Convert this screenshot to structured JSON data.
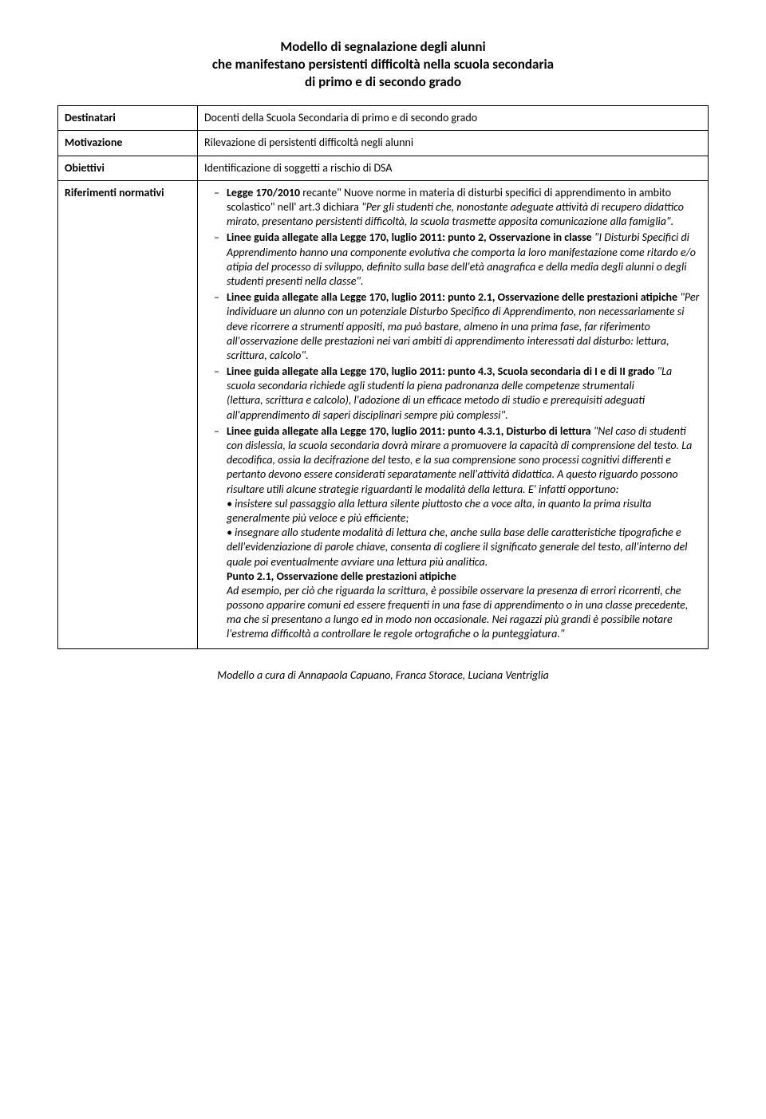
{
  "title": {
    "line1": "Modello di segnalazione degli alunni",
    "line2": "che  manifestano  persistenti difficoltà nella scuola secondaria",
    "line3": "di primo e di secondo grado"
  },
  "rows": {
    "destinatari": {
      "label": "Destinatari",
      "value": "Docenti della  Scuola Secondaria di primo e di secondo grado"
    },
    "motivazione": {
      "label": "Motivazione",
      "value": "Rilevazione di persistenti difficoltà negli alunni"
    },
    "obiettivi": {
      "label": "Obiettivi",
      "value": "Identificazione di soggetti a rischio di DSA"
    },
    "riferimenti": {
      "label": "Riferimenti normativi"
    }
  },
  "ref": {
    "item1": {
      "lead_b": "Legge 170/2010 ",
      "plain1": "recante\" Nuove norme in materia di disturbi specifici di apprendimento in ambito scolastico\" nell' art.3  dichiara ",
      "italic1": "\"Per gli studenti che, nonostante adeguate attività di recupero didattico mirato, presentano persistenti difficoltà, la scuola trasmette apposita comunicazione alla famiglia\"."
    },
    "item2": {
      "lead_b": "Linee guida allegate alla Legge 170, luglio 2011: punto 2, Osservazione in classe ",
      "italic1": "\"I Disturbi Specifici di Apprendimento hanno una componente evolutiva che comporta la loro manifestazione come ritardo e/o atipia del processo di sviluppo, definito sulla base dell'età anagrafica e della media degli alunni o degli studenti presenti nella classe\"."
    },
    "item3": {
      "lead_b": "Linee guida allegate alla Legge 170, luglio 2011: punto 2.1, Osservazione delle prestazioni atipiche ",
      "italic1": "\"Per  individuare  un  alunno  con un  potenziale  Disturbo  Specifico  di  Apprendimento,  non necessariamente si deve ricorrere a strumenti appositi, ma può bastare, almeno in una prima fase, far  riferimento  all'osservazione  delle  prestazioni  nei  vari  ambiti  di apprendimento  interessati  dal disturbo: lettura, scrittura, calcolo\"."
    },
    "item4": {
      "lead_b": "Linee guida allegate alla Legge 170, luglio 2011: punto 4.3, Scuola secondaria di I e di II grado ",
      "italic1": "\"La scuola secondaria richiede agli studenti la piena padronanza delle competenze strumentali",
      "italic2": "(lettura,  scrittura  e  calcolo),  l'adozione  di  un  efficace  metodo  di studio  e  prerequisiti  adeguati all'apprendimento  di  saperi disciplinari  sempre  più  complessi\"."
    },
    "item5": {
      "lead_b": "Linee guida allegate alla Legge 170, luglio 2011: punto 4.3.1, Disturbo di lettura  ",
      "italic1": "\"Nel caso di studenti con dislessia, la scuola secondaria dovrà mirare a promuovere la capacità di comprensione del testo.  La  decodifica, ossia  la  decifrazione  del  testo,  e  la  sua  comprensione  sono  processi cognitivi differenti e pertanto devono essere considerati separatamente nell'attività didattica.  A questo riguardo possono risultare utili alcune strategie riguardanti le modalità della lettura.  E' infatti opportuno:",
      "bullet1": "•  insistere  sul  passaggio  alla  lettura  silente  piuttosto  che  a  voce  alta,  in quanto  la  prima risulta generalmente più veloce e più efficiente;",
      "bullet2": "•  insegnare  allo  studente  modalità  di  lettura  che,  anche  sulla base  delle caratteristiche tipografiche  e  dell'evidenziazione  di  parole  chiave, consenta  di  cogliere  il  significato generale del testo, all'interno del quale poi eventualmente avviare una lettura più analitica.",
      "sub_b": "Punto 2.1, Osservazione delle prestazioni atipiche",
      "italic2": "Ad  esempio,  per  ciò  che  riguarda  la  scrittura,  è  possibile  osservare  la  presenza  di  errori ricorrenti, che possono apparire comuni ed essere frequenti in una fase di apprendimento o in una classe precedente, ma che si presentano a lungo ed in modo non occasionale. Nei ragazzi più grandi è possibile notare l'estrema difficoltà a controllare le regole ortografiche o la punteggiatura.\""
    }
  },
  "footer": "Modello a cura di Annapaola Capuano, Franca Storace, Luciana Ventriglia"
}
